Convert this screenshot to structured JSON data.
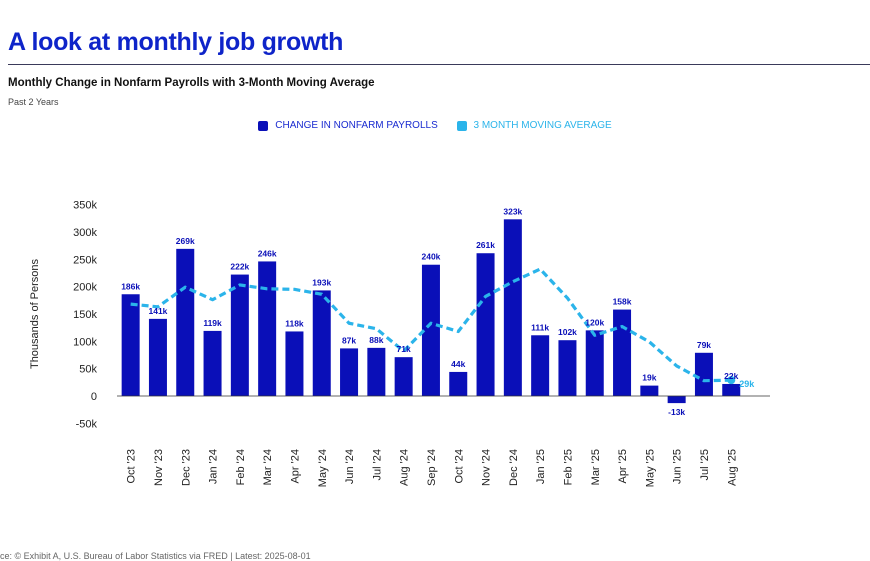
{
  "page": {
    "headline": "A look at monthly job growth",
    "subtitle": "Monthly Change in Nonfarm Payrolls with 3-Month Moving Average",
    "period": "Past 2 Years",
    "source": "ce: © Exhibit A, U.S. Bureau of Labor Statistics via FRED | Latest: 2025-08-01"
  },
  "colors": {
    "bar": "#0a0fb8",
    "moving_average": "#2bb4ea",
    "headline": "#0e24c9"
  },
  "chart_data": {
    "type": "bar",
    "title": "Monthly Change in Nonfarm Payrolls with 3-Month Moving Average",
    "subtitle": "Past 2 Years",
    "xlabel": "",
    "ylabel": "Thousands of Persons",
    "ylim": [
      -50,
      350
    ],
    "yticks": [
      -50,
      0,
      50,
      100,
      150,
      200,
      250,
      300,
      350
    ],
    "ytick_labels": [
      "-50k",
      "0",
      "50k",
      "100k",
      "150k",
      "200k",
      "250k",
      "300k",
      "350k"
    ],
    "legend_position": "top-center",
    "grid": false,
    "categories": [
      "Oct '23",
      "Nov '23",
      "Dec '23",
      "Jan '24",
      "Feb '24",
      "Mar '24",
      "Apr '24",
      "May '24",
      "Jun '24",
      "Jul '24",
      "Aug '24",
      "Sep '24",
      "Oct '24",
      "Nov '24",
      "Dec '24",
      "Jan '25",
      "Feb '25",
      "Mar '25",
      "Apr '25",
      "May '25",
      "Jun '25",
      "Jul '25",
      "Aug '25"
    ],
    "series": [
      {
        "name": "CHANGE IN NONFARM PAYROLLS",
        "type": "bar",
        "values": [
          186,
          141,
          269,
          119,
          222,
          246,
          118,
          193,
          87,
          88,
          71,
          240,
          44,
          261,
          323,
          111,
          102,
          120,
          158,
          19,
          -13,
          79,
          22
        ],
        "labels": [
          "186k",
          "141k",
          "269k",
          "119k",
          "222k",
          "246k",
          "118k",
          "193k",
          "87k",
          "88k",
          "71k",
          "240k",
          "44k",
          "261k",
          "323k",
          "111k",
          "102k",
          "120k",
          "158k",
          "19k",
          "-13k",
          "79k",
          "22k"
        ]
      },
      {
        "name": "3 MONTH MOVING AVERAGE",
        "type": "line",
        "style": "dashed",
        "values": [
          168,
          163,
          199,
          176,
          203,
          196,
          195,
          186,
          133,
          123,
          82,
          133,
          118,
          182,
          209,
          232,
          179,
          111,
          127,
          99,
          55,
          28,
          29
        ],
        "end_label": "29k"
      }
    ]
  }
}
